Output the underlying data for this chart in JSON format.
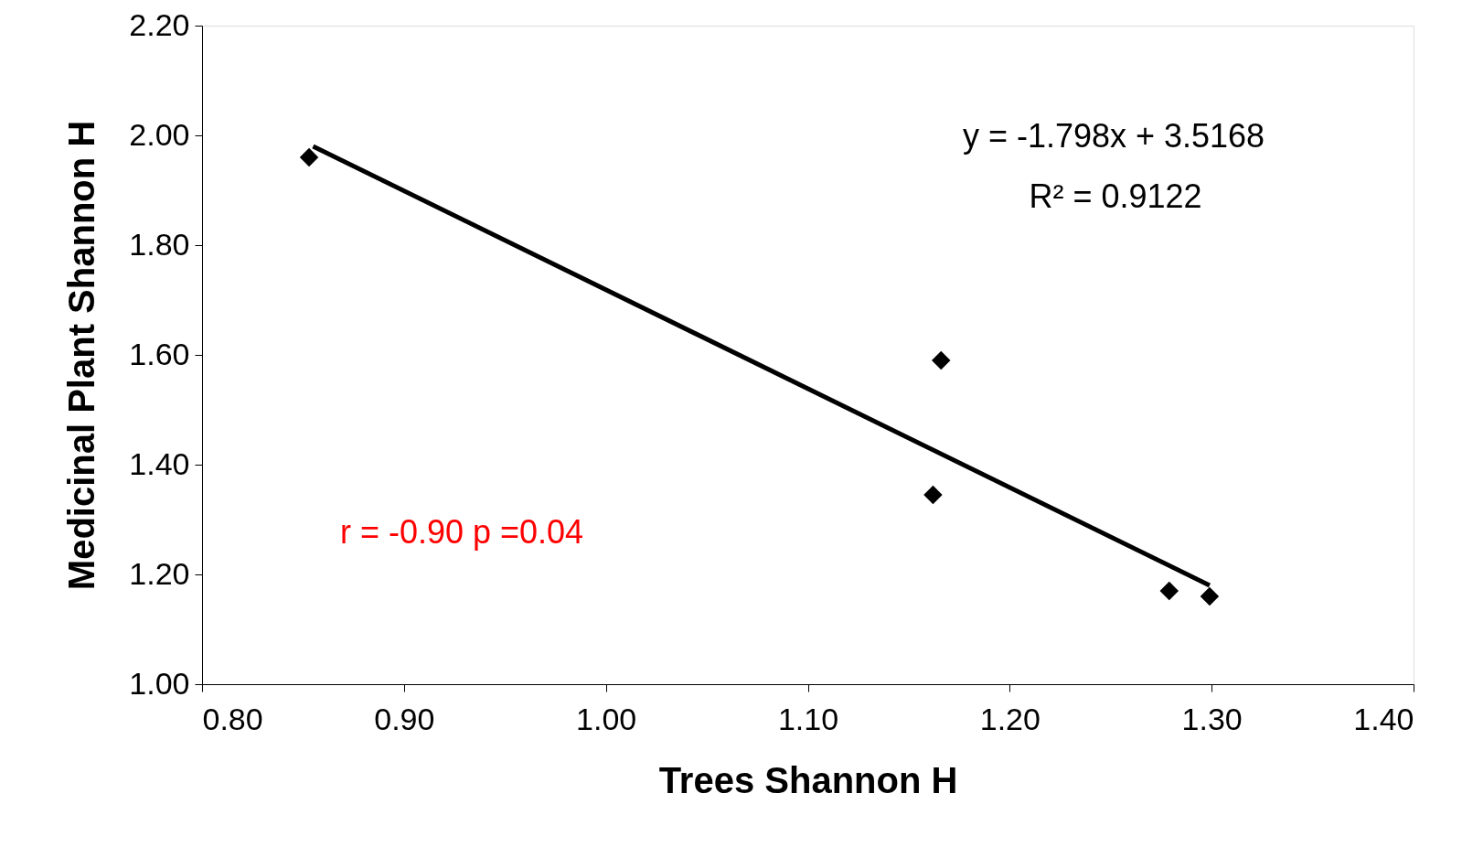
{
  "chart_data": {
    "type": "scatter",
    "xlabel": "Trees Shannon H",
    "ylabel": "Medicinal Plant Shannon H",
    "x": [
      0.853,
      1.166,
      1.162,
      1.279,
      1.299
    ],
    "series": [
      {
        "color": "#000000",
        "values": [
          1.96,
          1.59,
          1.345,
          1.17,
          1.16
        ],
        "marker": "diamond"
      },
      {
        "type": "line",
        "color": "#000000",
        "x": [
          0.855,
          1.299
        ],
        "values": [
          1.98,
          1.18
        ],
        "marker": "none",
        "line_style": "solid"
      }
    ],
    "annotations": [
      "y = -1.798x + 3.5168",
      "R² = 0.9122",
      "r = -0.90 p =0.04"
    ],
    "xlim": [
      0.8,
      1.4
    ],
    "xticks": [
      {
        "value": 0.8,
        "label": "0.80"
      },
      {
        "value": 0.9,
        "label": "0.90"
      },
      {
        "value": 1.0,
        "label": "1.00"
      },
      {
        "value": 1.1,
        "label": "1.10"
      },
      {
        "value": 1.2,
        "label": "1.20"
      },
      {
        "value": 1.3,
        "label": "1.30"
      },
      {
        "value": 1.4,
        "label": "1.40"
      }
    ],
    "ylim": [
      1.0,
      2.2
    ],
    "yticks": [
      {
        "value": 1.0,
        "label": "1.00"
      },
      {
        "value": 1.2,
        "label": "1.20"
      },
      {
        "value": 1.4,
        "label": "1.40"
      },
      {
        "value": 1.6,
        "label": "1.60"
      },
      {
        "value": 1.8,
        "label": "1.80"
      },
      {
        "value": 2.0,
        "label": "2.00"
      },
      {
        "value": 2.2,
        "label": "2.20"
      }
    ],
    "grid": false
  }
}
